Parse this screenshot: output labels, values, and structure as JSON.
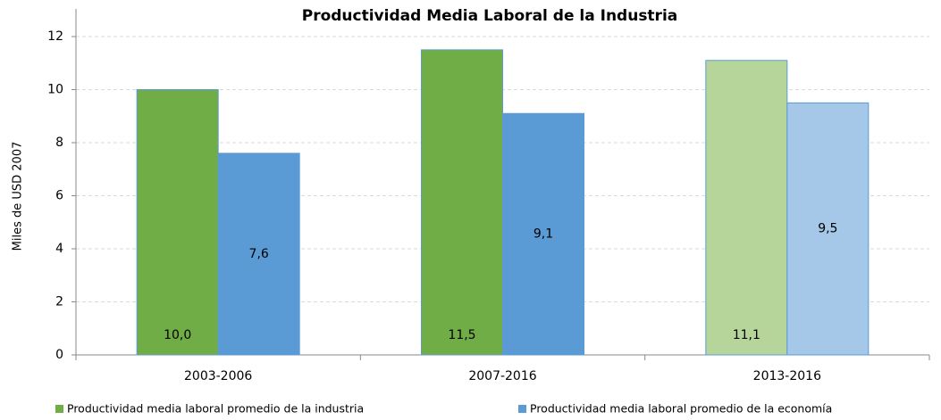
{
  "chart_data": {
    "type": "bar",
    "title": "Productividad Media Laboral de la Industria",
    "y_label": "Miles de USD 2007",
    "categories": [
      "2003-2006",
      "2007-2016",
      "2013-2016"
    ],
    "series": [
      {
        "name": "Productividad media laboral promedio de la industria",
        "color": "#70ad47",
        "colors": [
          "#70ad47",
          "#70ad47",
          "#b5d59b"
        ],
        "values": [
          10.0,
          11.5,
          11.1
        ],
        "value_labels": [
          "10,0",
          "11,5",
          "11,1"
        ]
      },
      {
        "name": "Productividad media laboral  promedio de la economía",
        "color": "#5b9bd5",
        "colors": [
          "#5b9bd5",
          "#5b9bd5",
          "#a5c7e8"
        ],
        "values": [
          7.6,
          9.1,
          9.5
        ],
        "value_labels": [
          "7,6",
          "9,1",
          "9,5"
        ]
      }
    ],
    "ylim": [
      0,
      12
    ],
    "yticks": [
      0,
      2,
      4,
      6,
      8,
      10,
      12
    ],
    "grid": true,
    "legend": "bottom"
  }
}
